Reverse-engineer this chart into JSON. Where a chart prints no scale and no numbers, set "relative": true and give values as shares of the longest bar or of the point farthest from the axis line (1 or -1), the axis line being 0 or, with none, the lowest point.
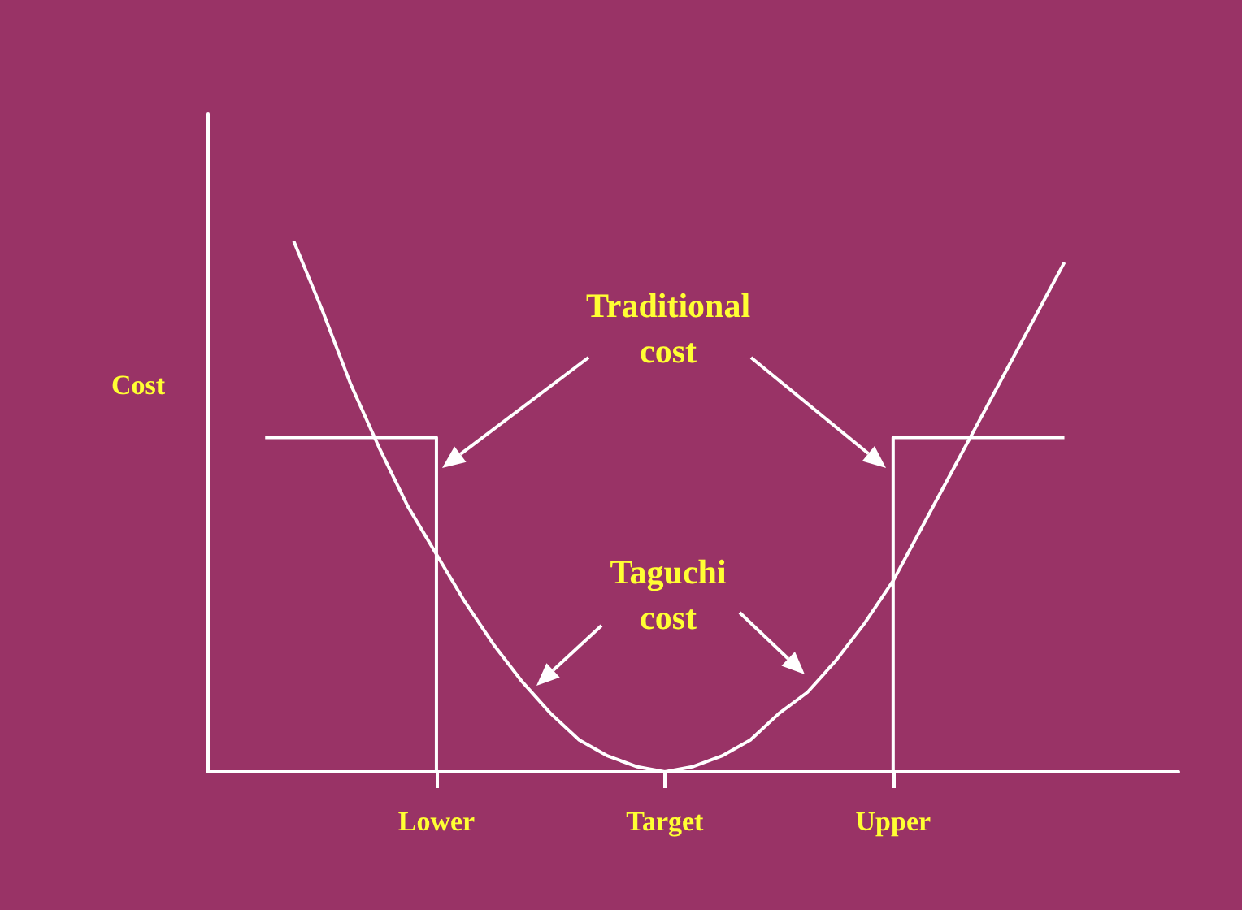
{
  "chart_data": {
    "type": "line",
    "relative": true,
    "ylabel": "Cost",
    "grid": false,
    "marker": "none",
    "line_style": "solid",
    "categories": [
      null,
      null,
      null,
      null,
      null,
      null,
      null,
      null,
      "Lower",
      null,
      null,
      null,
      null,
      null,
      null,
      null,
      "Target",
      null,
      null,
      null,
      null,
      null,
      null,
      null,
      "Upper",
      null,
      null,
      null,
      null,
      null,
      null,
      null,
      null,
      null,
      null
    ],
    "series": [
      {
        "type": "line",
        "color": "#ffffff",
        "values": [
          null,
          null,
          null,
          1.0,
          0.87,
          0.73,
          0.61,
          0.5,
          0.41,
          0.32,
          0.24,
          0.17,
          0.11,
          0.06,
          0.03,
          0.01,
          0,
          0.01,
          0.03,
          0.06,
          0.11,
          0.15,
          0.21,
          0.28,
          0.36,
          0.46,
          0.56,
          0.66,
          0.76,
          0.86,
          0.96,
          null,
          null,
          null,
          null
        ]
      },
      {
        "type": "step",
        "color": "#ffffff",
        "values": [
          null,
          null,
          0.63,
          0.63,
          0.63,
          0.63,
          0.63,
          0.63,
          0.63,
          0,
          0,
          0,
          0,
          0,
          0,
          0,
          0,
          0,
          0,
          0,
          0,
          0,
          0,
          0,
          0,
          0.63,
          0.63,
          0.63,
          0.63,
          0.63,
          0.63,
          null,
          null,
          null,
          null
        ]
      }
    ],
    "annotations": [
      "Traditional\ncost",
      "Taguchi\ncost"
    ]
  }
}
